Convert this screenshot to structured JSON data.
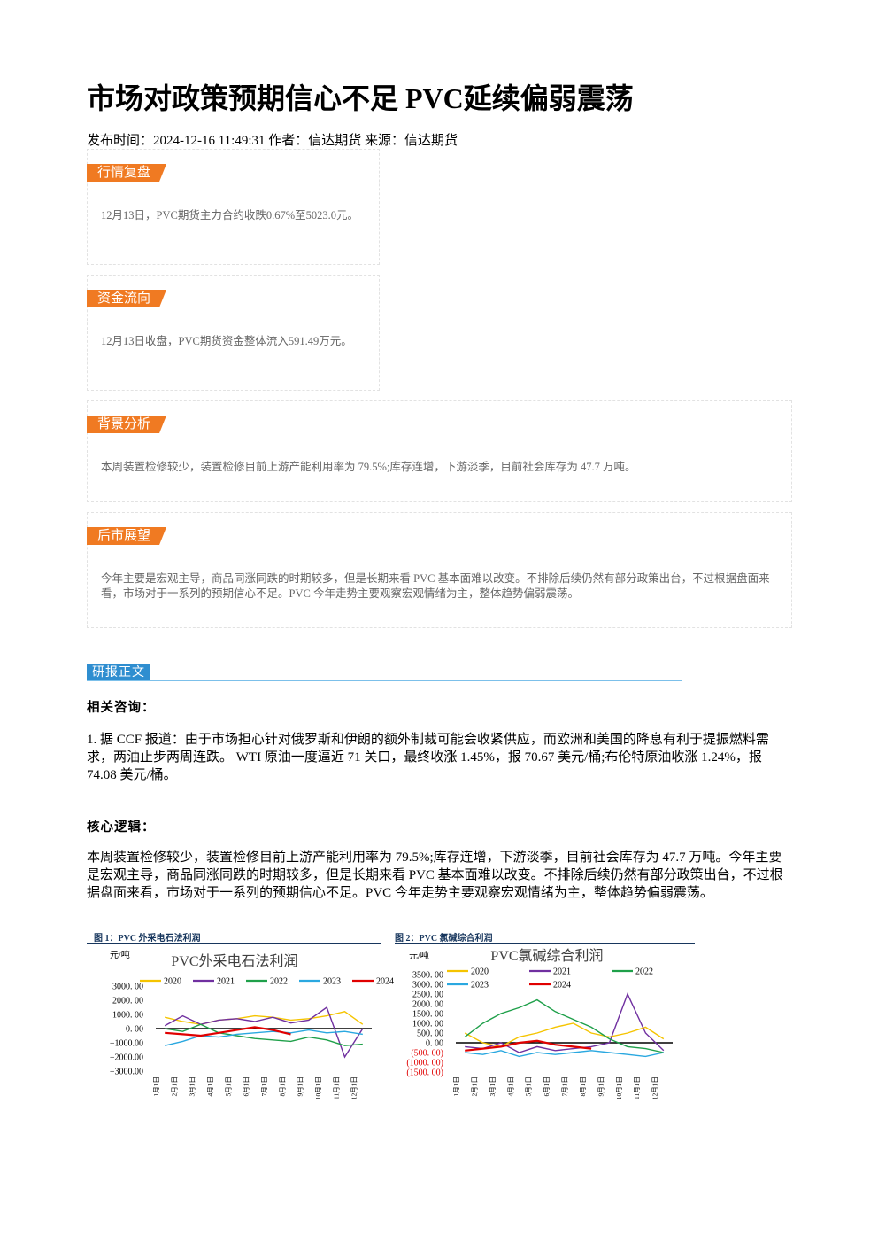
{
  "title": "市场对政策预期信心不足 PVC延续偏弱震荡",
  "meta": "发布时间：2024-12-16 11:49:31 作者：信达期货 来源：信达期货",
  "sections": [
    {
      "label": "行情复盘",
      "text": "12月13日，PVC期货主力合约收跌0.67%至5023.0元。"
    },
    {
      "label": "资金流向",
      "text": "12月13日收盘，PVC期货资金整体流入591.49万元。"
    },
    {
      "label": "背景分析",
      "text": "本周装置检修较少，装置检修目前上游产能利用率为 79.5%;库存连增，下游淡季，目前社会库存为 47.7 万吨。"
    },
    {
      "label": "后市展望",
      "text": "今年主要是宏观主导，商品同涨同跌的时期较多，但是长期来看 PVC 基本面难以改变。不排除后续仍然有部分政策出台，不过根据盘面来看，市场对于一系列的预期信心不足。PVC 今年走势主要观察宏观情绪为主，整体趋势偏弱震荡。"
    }
  ],
  "body_label": "研报正文",
  "consult_heading": "相关咨询：",
  "consult_text": "1. 据 CCF 报道：由于市场担心针对俄罗斯和伊朗的额外制裁可能会收紧供应，而欧洲和美国的降息有利于提振燃料需求，两油止步两周连跌。 WTI 原油一度逼近 71 关口，最终收涨 1.45%，报 70.67 美元/桶;布伦特原油收涨 1.24%，报 74.08 美元/桶。",
  "core_heading": "核心逻辑：",
  "core_text": "本周装置检修较少，装置检修目前上游产能利用率为 79.5%;库存连增，下游淡季，目前社会库存为 47.7 万吨。今年主要是宏观主导，商品同涨同跌的时期较多，但是长期来看 PVC 基本面难以改变。不排除后续仍然有部分政策出台，不过根据盘面来看，市场对于一系列的预期信心不足。PVC 今年走势主要观察宏观情绪为主，整体趋势偏弱震荡。",
  "figures": [
    {
      "caption": "图 1：PVC 外采电石法利润"
    },
    {
      "caption": "图 2：PVC 氯碱综合利润"
    }
  ],
  "chart_data": [
    {
      "type": "line",
      "title": "PVC外采电石法利润",
      "y_unit": "元/吨",
      "categories": [
        "1月1日",
        "2月1日",
        "3月1日",
        "4月1日",
        "5月1日",
        "6月1日",
        "7月1日",
        "8月1日",
        "9月1日",
        "10月1日",
        "11月1日",
        "12月1日"
      ],
      "ylim": [
        -3000,
        3000
      ],
      "yticks": [
        {
          "value": 3000,
          "label": "3000. 00"
        },
        {
          "value": 2000,
          "label": "2000. 00"
        },
        {
          "value": 1000,
          "label": "1000. 00"
        },
        {
          "value": 0,
          "label": "0. 00"
        },
        {
          "value": -1000,
          "label": "−1000.00"
        },
        {
          "value": -2000,
          "label": "−2000.00"
        },
        {
          "value": -3000,
          "label": "−3000.00"
        }
      ],
      "grid": false,
      "legend_columns": 5,
      "series": [
        {
          "name": "2020",
          "color": "#f5c400",
          "values": [
            800,
            500,
            300,
            600,
            700,
            900,
            800,
            600,
            700,
            900,
            1200,
            300
          ]
        },
        {
          "name": "2021",
          "color": "#7030a0",
          "values": [
            200,
            900,
            300,
            600,
            700,
            500,
            800,
            400,
            600,
            1500,
            -2000,
            0
          ]
        },
        {
          "name": "2022",
          "color": "#1fa04a",
          "values": [
            0,
            -200,
            300,
            -300,
            -500,
            -700,
            -800,
            -900,
            -600,
            -800,
            -1200,
            -1100
          ]
        },
        {
          "name": "2023",
          "color": "#2aa8e0",
          "values": [
            -1200,
            -900,
            -500,
            -600,
            -400,
            -300,
            -200,
            -300,
            -100,
            -300,
            -200,
            -400
          ]
        },
        {
          "name": "2024",
          "color": "#e00000",
          "values": [
            -300,
            -400,
            -500,
            -300,
            -100,
            100,
            -100,
            -400,
            null,
            null,
            null,
            null
          ]
        }
      ]
    },
    {
      "type": "line",
      "title": "PVC氯碱综合利润",
      "y_unit": "元/吨",
      "categories": [
        "1月1日",
        "2月1日",
        "3月1日",
        "4月1日",
        "5月1日",
        "6月1日",
        "7月1日",
        "8月1日",
        "9月1日",
        "10月1日",
        "11月1日",
        "12月1日"
      ],
      "ylim": [
        -1500,
        3500
      ],
      "yticks": [
        {
          "value": 3500,
          "label": "3500. 00"
        },
        {
          "value": 3000,
          "label": "3000. 00"
        },
        {
          "value": 2500,
          "label": "2500. 00"
        },
        {
          "value": 2000,
          "label": "2000. 00"
        },
        {
          "value": 1500,
          "label": "1500. 00"
        },
        {
          "value": 1000,
          "label": "1000. 00"
        },
        {
          "value": 500,
          "label": "500. 00"
        },
        {
          "value": 0,
          "label": "0. 00"
        },
        {
          "value": -500,
          "label": "(500. 00)"
        },
        {
          "value": -1000,
          "label": "(1000. 00)"
        },
        {
          "value": -1500,
          "label": "(1500. 00)"
        }
      ],
      "grid": false,
      "legend_columns": 3,
      "negative_tick_color": "#e00000",
      "series": [
        {
          "name": "2020",
          "color": "#f5c400",
          "values": [
            500,
            0,
            -200,
            300,
            500,
            800,
            1000,
            500,
            300,
            500,
            800,
            200
          ]
        },
        {
          "name": "2021",
          "color": "#7030a0",
          "values": [
            -200,
            -300,
            0,
            -500,
            -200,
            -400,
            -300,
            -200,
            0,
            2500,
            500,
            -400
          ]
        },
        {
          "name": "2022",
          "color": "#1fa04a",
          "values": [
            300,
            1000,
            1500,
            1800,
            2200,
            1600,
            1200,
            800,
            200,
            -200,
            -300,
            -500
          ]
        },
        {
          "name": "2023",
          "color": "#2aa8e0",
          "values": [
            -500,
            -600,
            -400,
            -700,
            -500,
            -600,
            -500,
            -400,
            -500,
            -600,
            -700,
            -500
          ]
        },
        {
          "name": "2024",
          "color": "#e00000",
          "values": [
            -400,
            -300,
            -200,
            0,
            100,
            -100,
            -200,
            -300,
            null,
            null,
            null,
            null
          ]
        }
      ]
    }
  ]
}
